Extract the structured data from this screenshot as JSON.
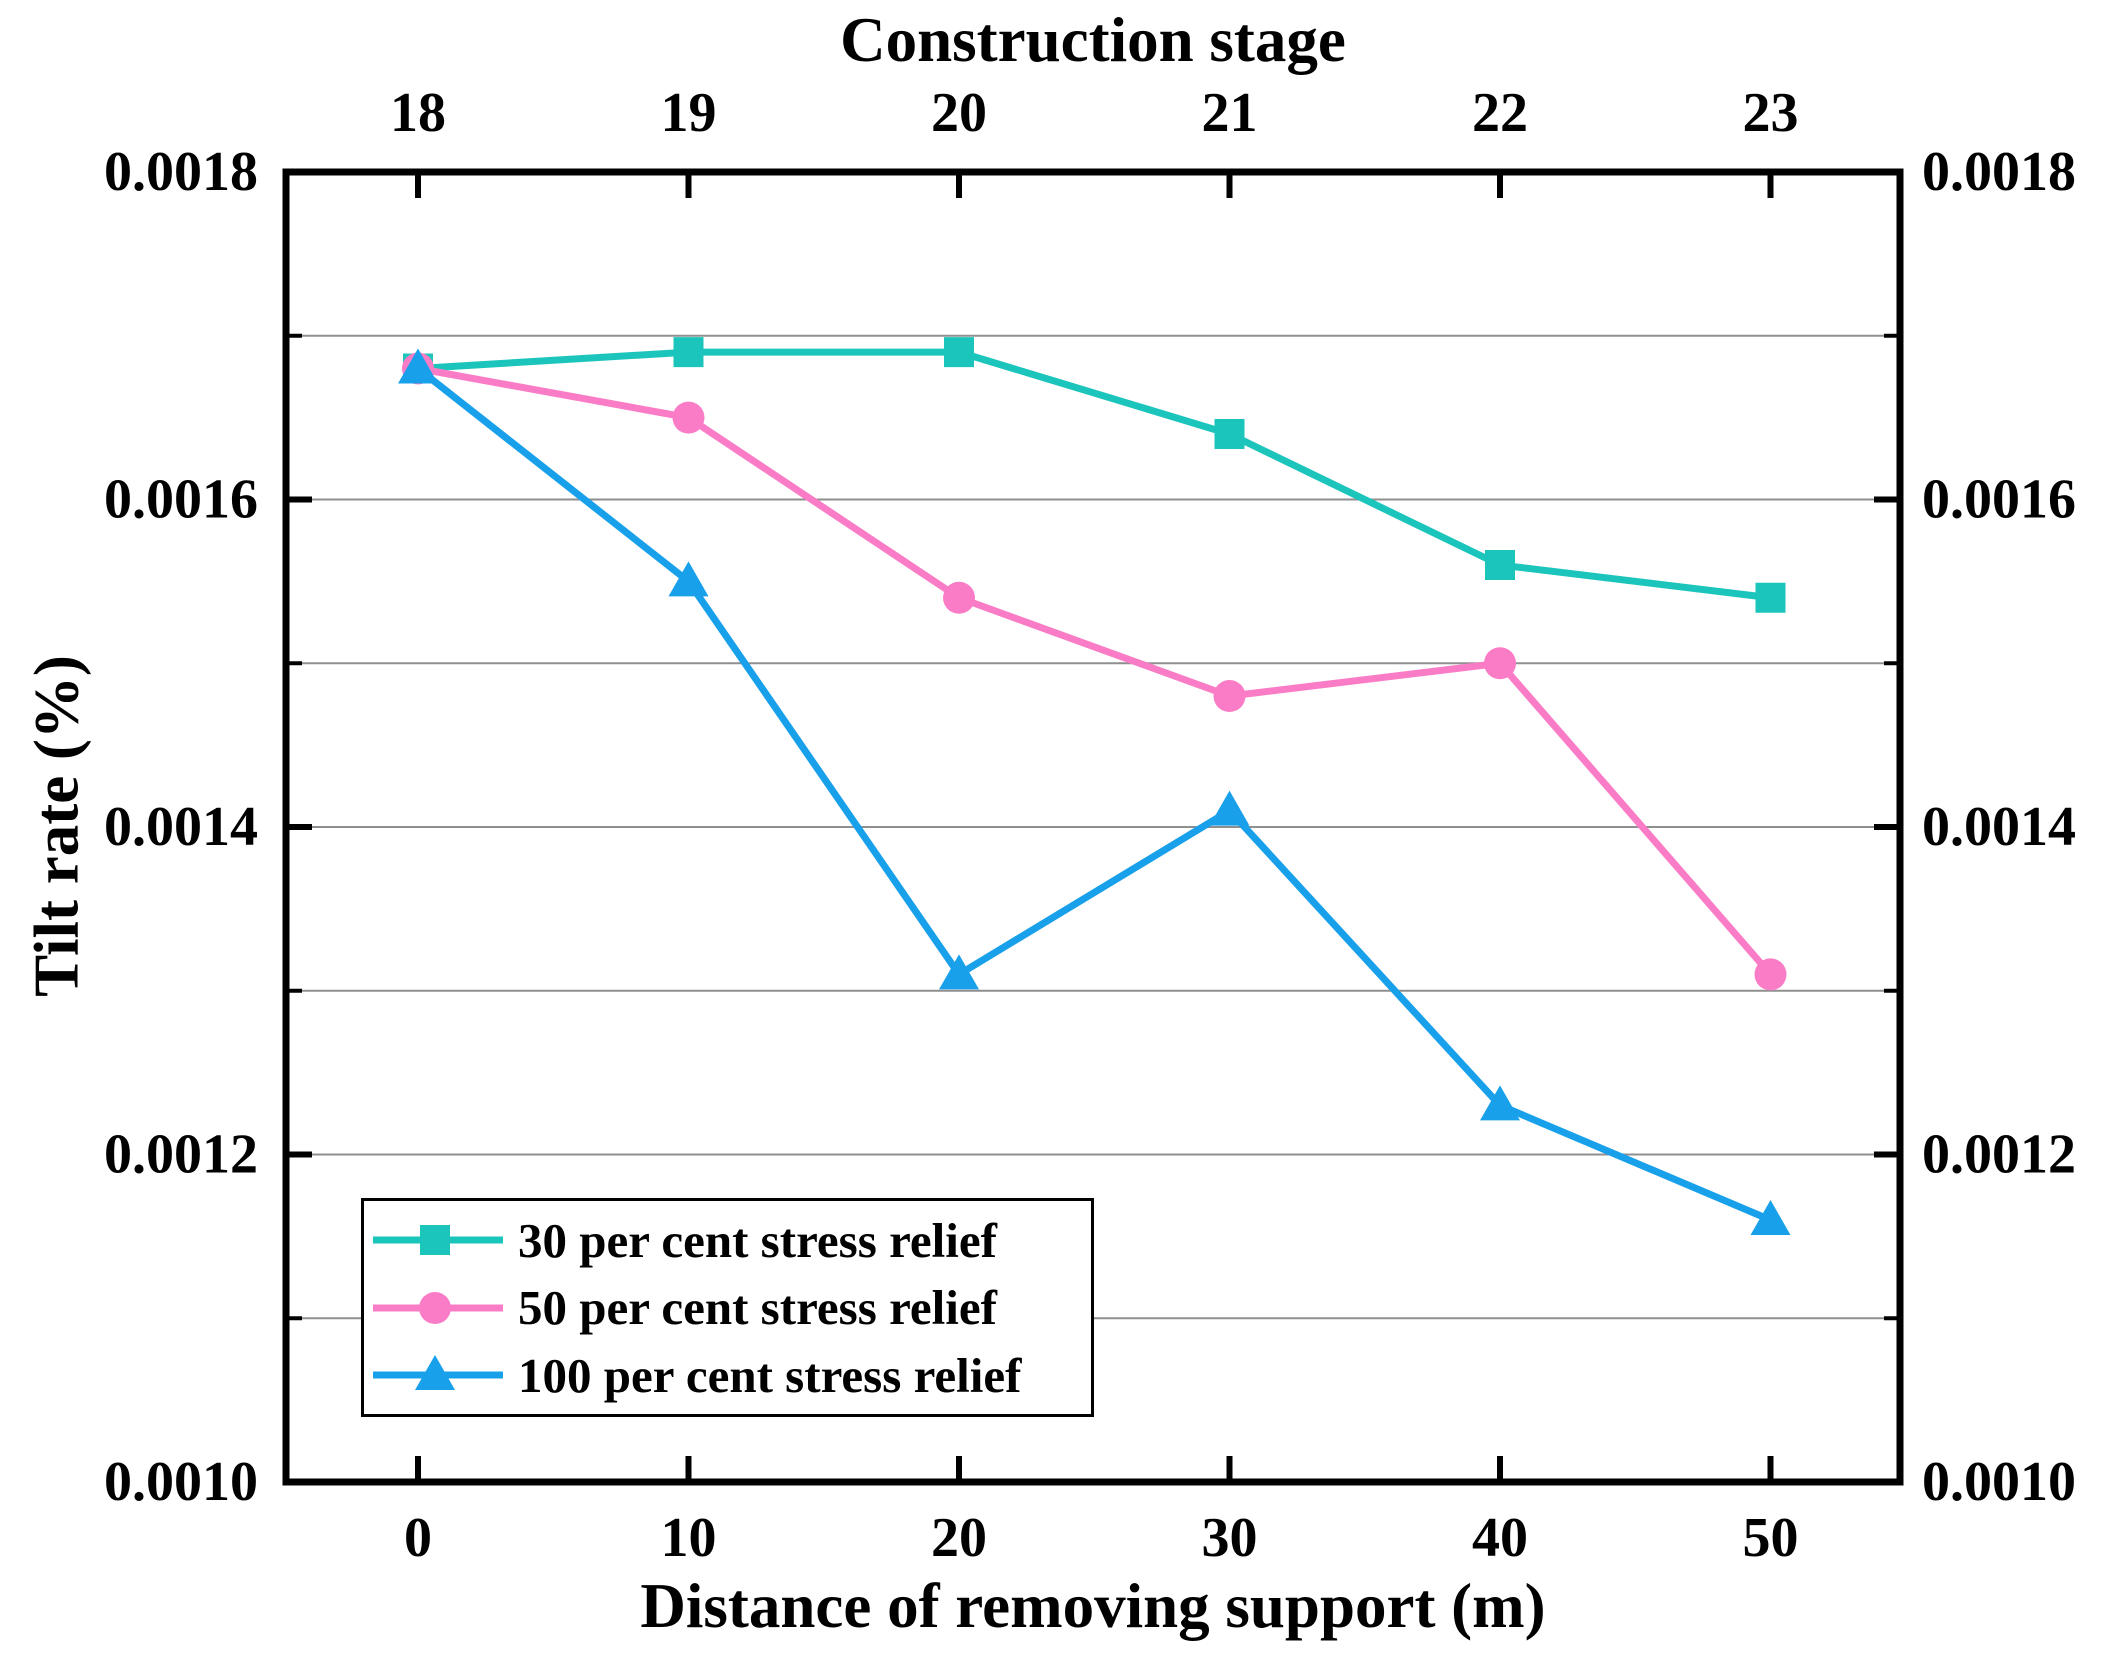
{
  "figure": {
    "background": "#ffffff",
    "text_color": "#000000",
    "grid_color": "#8f8f8f"
  },
  "chart_data": {
    "type": "line",
    "title_top": "Construction stage",
    "xlabel": "Distance of removing support (m)",
    "ylabel": "Tilt rate (%)",
    "x": [
      0,
      10,
      20,
      30,
      40,
      50
    ],
    "x_tick_labels": [
      "0",
      "10",
      "20",
      "30",
      "40",
      "50"
    ],
    "top_axis_tick_labels": [
      "18",
      "19",
      "20",
      "21",
      "22",
      "23"
    ],
    "ylim": [
      0.001,
      0.0018
    ],
    "y_ticks": [
      0.0018,
      0.0016,
      0.0014,
      0.0012,
      0.001
    ],
    "y_tick_labels": [
      "0.0018",
      "0.0016",
      "0.0014",
      "0.0012",
      "0.0010"
    ],
    "y_minor_ticks": [
      0.0017,
      0.0015,
      0.0013,
      0.0011
    ],
    "grid_values": [
      0.0017,
      0.0016,
      0.0015,
      0.0014,
      0.0013,
      0.0012,
      0.0011
    ],
    "grid": "horizontal",
    "legend_position": "lower-left",
    "series": [
      {
        "name": "30 per cent stress relief",
        "color": "#1bc5bc",
        "marker": "square",
        "values": [
          0.00168,
          0.00169,
          0.00169,
          0.00164,
          0.00156,
          0.00154
        ]
      },
      {
        "name": "50 per cent stress relief",
        "color": "#fa7cc6",
        "marker": "circle",
        "values": [
          0.00168,
          0.00165,
          0.00154,
          0.00148,
          0.0015,
          0.00131
        ]
      },
      {
        "name": "100 per cent stress relief",
        "color": "#18a0ea",
        "marker": "triangle",
        "values": [
          0.00168,
          0.00155,
          0.00131,
          0.00141,
          0.00123,
          0.00116
        ]
      }
    ]
  }
}
